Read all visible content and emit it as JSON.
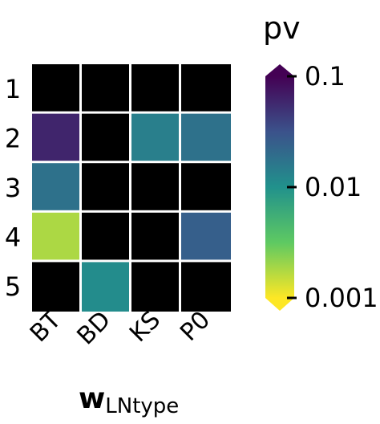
{
  "chart_data": {
    "type": "heatmap",
    "title": "",
    "rows": [
      "1",
      "2",
      "3",
      "4",
      "5"
    ],
    "columns": [
      "BT",
      "BD",
      "KS",
      "P0"
    ],
    "xlabel_main": "w",
    "xlabel_sub": "LNtype",
    "ylabel": "",
    "colorbar": {
      "label": "pv",
      "scale": "log",
      "range": [
        0.001,
        0.1
      ],
      "tick_values": [
        0.1,
        0.01,
        0.001
      ],
      "tick_labels": [
        "0.1",
        "0.01",
        "0.001"
      ],
      "colormap": "viridis_r",
      "extend": "both"
    },
    "missing_color": "#000000",
    "values": [
      [
        null,
        null,
        null,
        null
      ],
      [
        0.06,
        null,
        0.014,
        0.018
      ],
      [
        0.018,
        null,
        null,
        null
      ],
      [
        0.0018,
        null,
        null,
        0.025
      ],
      [
        null,
        0.011,
        null,
        null
      ]
    ]
  }
}
